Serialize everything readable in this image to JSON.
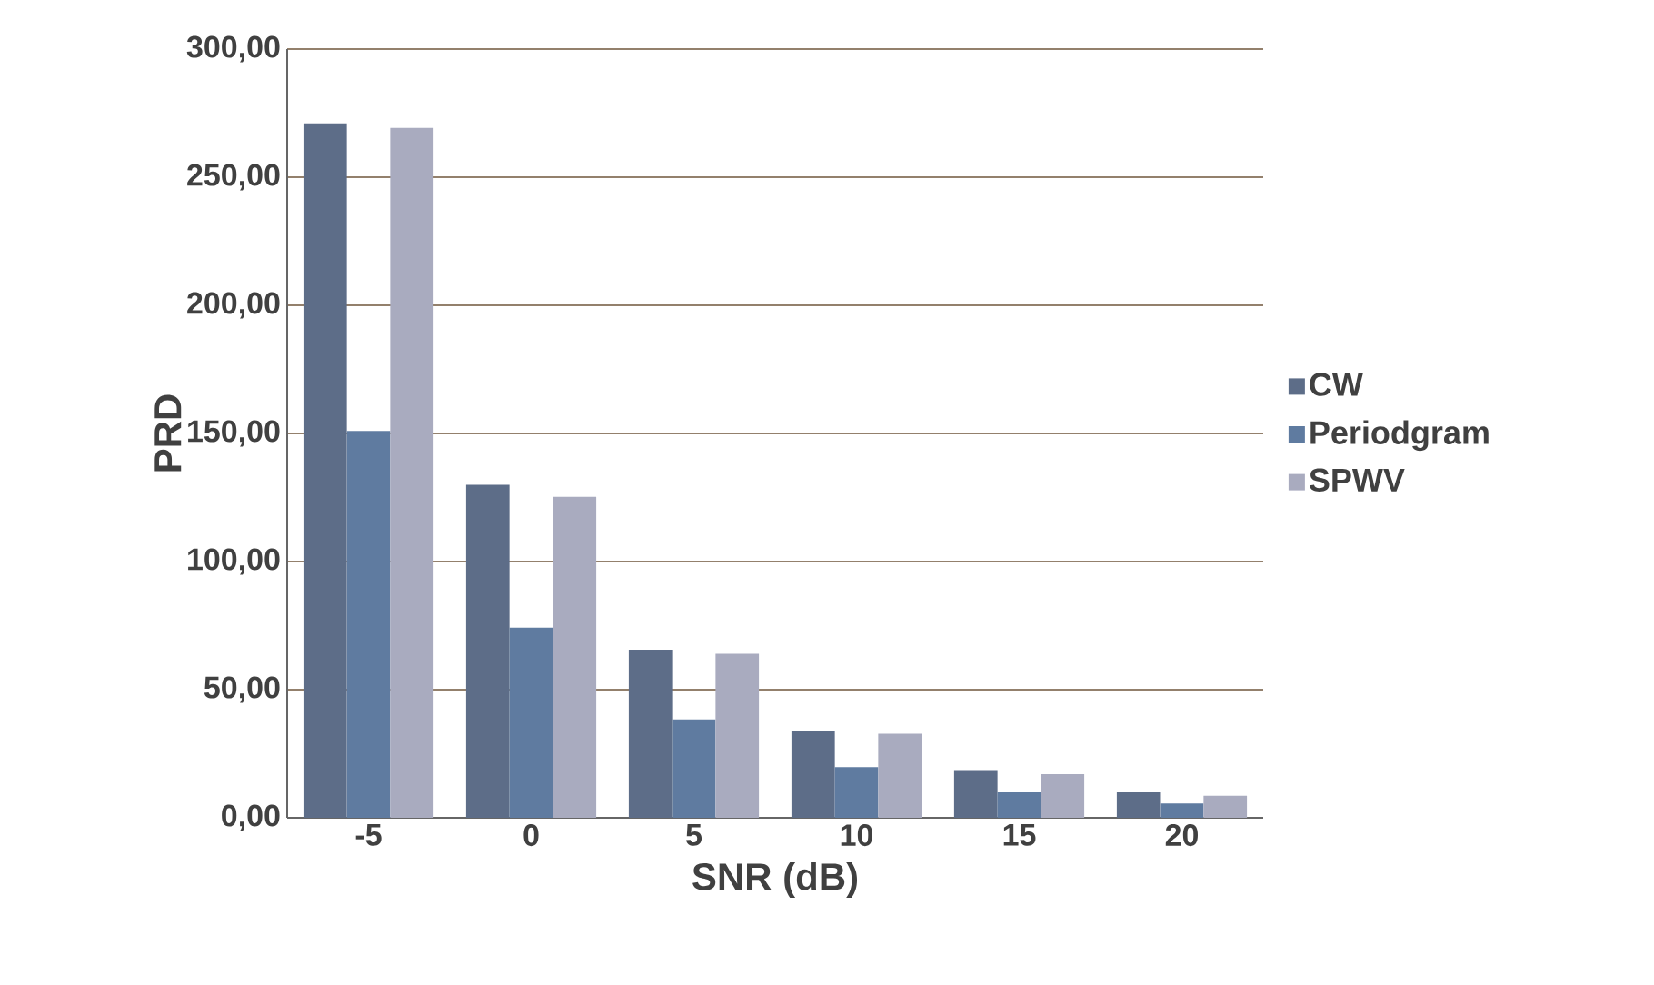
{
  "chart_data": {
    "type": "bar",
    "xlabel": "SNR (dB)",
    "ylabel": "PRD",
    "categories": [
      "-5",
      "0",
      "5",
      "10",
      "15",
      "20"
    ],
    "series": [
      {
        "name": "CW",
        "color": "#5d6d88",
        "values": [
          271,
          130,
          65.6,
          34,
          18.6,
          9.9
        ]
      },
      {
        "name": "Periodgram",
        "color": "#5f7ba0",
        "values": [
          151,
          74.2,
          38.4,
          19.8,
          9.9,
          5.6
        ]
      },
      {
        "name": "SPWV",
        "color": "#a9abbf",
        "values": [
          269.3,
          125.3,
          64,
          32.8,
          17,
          8.6
        ]
      }
    ],
    "ylim": [
      0,
      300
    ],
    "yticks": [
      {
        "value": 0,
        "label": "0,00"
      },
      {
        "value": 50,
        "label": "50,00"
      },
      {
        "value": 100,
        "label": "100,00"
      },
      {
        "value": 150,
        "label": "150,00"
      },
      {
        "value": 200,
        "label": "200,00"
      },
      {
        "value": 250,
        "label": "250,00"
      },
      {
        "value": 300,
        "label": "300,00"
      }
    ],
    "grid": "y",
    "legend": "right"
  }
}
